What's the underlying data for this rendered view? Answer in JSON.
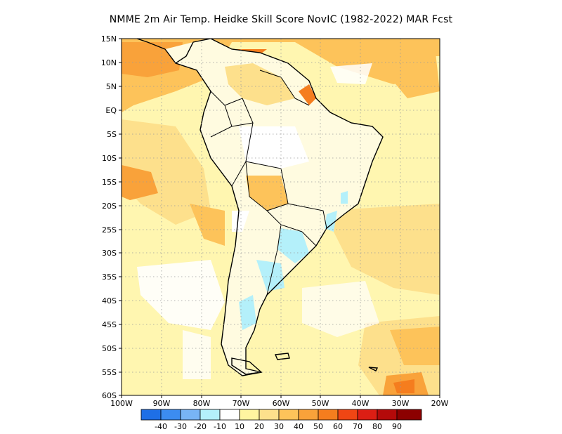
{
  "title": "NMME  2m Air Temp. Heidke Skill Score NovIC (1982-2022) MAR Fcst",
  "map": {
    "region": "South America",
    "lat_labels": [
      "15N",
      "10N",
      "5N",
      "EQ",
      "5S",
      "10S",
      "15S",
      "20S",
      "25S",
      "30S",
      "35S",
      "40S",
      "45S",
      "50S",
      "55S",
      "60S"
    ],
    "lon_labels": [
      "100W",
      "90W",
      "80W",
      "70W",
      "60W",
      "50W",
      "40W",
      "30W",
      "20W"
    ],
    "grid": "dotted",
    "colors": {
      "ocean_background": "#fff6b0",
      "continent_fill": "#fffbe0",
      "coastline": "#000000",
      "gridline": "#9a9a9a"
    }
  },
  "colorbar": {
    "labels": [
      "-40",
      "-30",
      "-20",
      "-10",
      "10",
      "20",
      "30",
      "40",
      "50",
      "60",
      "70",
      "80",
      "90"
    ],
    "colors": [
      "#1e6fe6",
      "#3c8cf0",
      "#78b4f5",
      "#b4f0fa",
      "#ffffff",
      "#fff5a0",
      "#fde08c",
      "#fdc35a",
      "#f9a23a",
      "#f57d1e",
      "#f04614",
      "#dc1e14",
      "#b40a0a",
      "#8c0000"
    ]
  }
}
